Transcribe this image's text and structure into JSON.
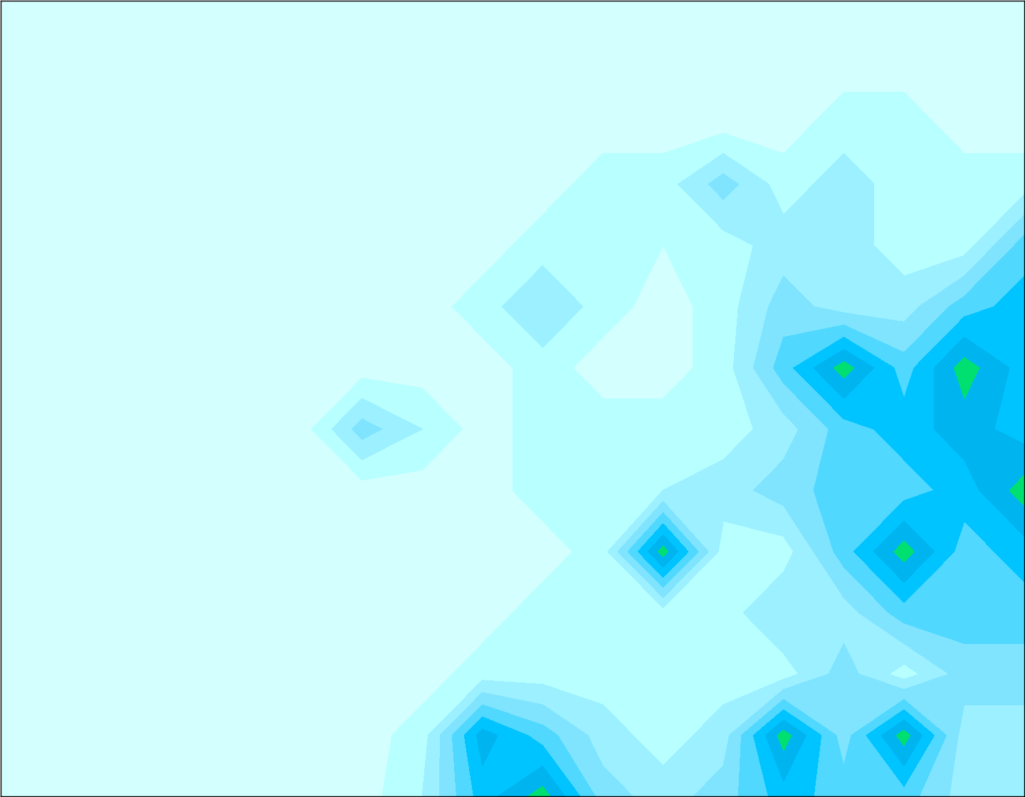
{
  "chart_data": {
    "type": "contour",
    "tick_labels": false,
    "levels": [
      -1,
      0.5,
      1.5,
      2.5,
      3.5,
      4.5,
      5.5,
      6.5,
      10
    ],
    "colors": [
      "#d4ffff",
      "#b8ffff",
      "#9cf0ff",
      "#80e4ff",
      "#50d8ff",
      "#00c4ff",
      "#00b4f0",
      "#00e070"
    ],
    "cells": [
      [
        0,
        0,
        0,
        0,
        0,
        0,
        0,
        0,
        0,
        0,
        0,
        0,
        0,
        0,
        0,
        0,
        0,
        0
      ],
      [
        0,
        0,
        0,
        0,
        0,
        0,
        0,
        0,
        0,
        0,
        0,
        0,
        0,
        0,
        0,
        0,
        0,
        0
      ],
      [
        0,
        0,
        0,
        0,
        0,
        0,
        0,
        0,
        0,
        0,
        0,
        0,
        0,
        0,
        1,
        1,
        0,
        0
      ],
      [
        0,
        0,
        0,
        0,
        0,
        0,
        0,
        0,
        0,
        0,
        1,
        1,
        3,
        1,
        2,
        1,
        1,
        1
      ],
      [
        0,
        0,
        0,
        0,
        0,
        0,
        0,
        0,
        0,
        1,
        1,
        0.5,
        1,
        2,
        2,
        1,
        1,
        4
      ],
      [
        0,
        0,
        0,
        0,
        0,
        0,
        0,
        0,
        1,
        2.5,
        1,
        0,
        1,
        3,
        2,
        2,
        4,
        5
      ],
      [
        0,
        0,
        0,
        0,
        0,
        0,
        0,
        0,
        0,
        1,
        0,
        0,
        1,
        4,
        7,
        4,
        7,
        5
      ],
      [
        0,
        0,
        0,
        0,
        0,
        0,
        3,
        1.5,
        0,
        1,
        1,
        1,
        1,
        2,
        4,
        5,
        6,
        5
      ],
      [
        0,
        0,
        0,
        0,
        0,
        0,
        0,
        0,
        0,
        1,
        1,
        1.5,
        2,
        3,
        4,
        4,
        5,
        7
      ],
      [
        0,
        0,
        0,
        0,
        0,
        0,
        0,
        0,
        0,
        0,
        1,
        7,
        1,
        1,
        4,
        7,
        4,
        5
      ],
      [
        0,
        0,
        0,
        0,
        0,
        0,
        0,
        0,
        0,
        1,
        1,
        1,
        1,
        2.5,
        2,
        4,
        4,
        4
      ],
      [
        0,
        0,
        0,
        0,
        0,
        0,
        0,
        0,
        1,
        1,
        1,
        0.5,
        1,
        1,
        3,
        1,
        3,
        3
      ],
      [
        0,
        0,
        0,
        0,
        0,
        0,
        0,
        1,
        6,
        4,
        2,
        1,
        2,
        7,
        3,
        7,
        2,
        2
      ],
      [
        0,
        0,
        0,
        0,
        0,
        0,
        0,
        1.5,
        5,
        7,
        3,
        2,
        3,
        5,
        4,
        4,
        2,
        2
      ]
    ]
  }
}
